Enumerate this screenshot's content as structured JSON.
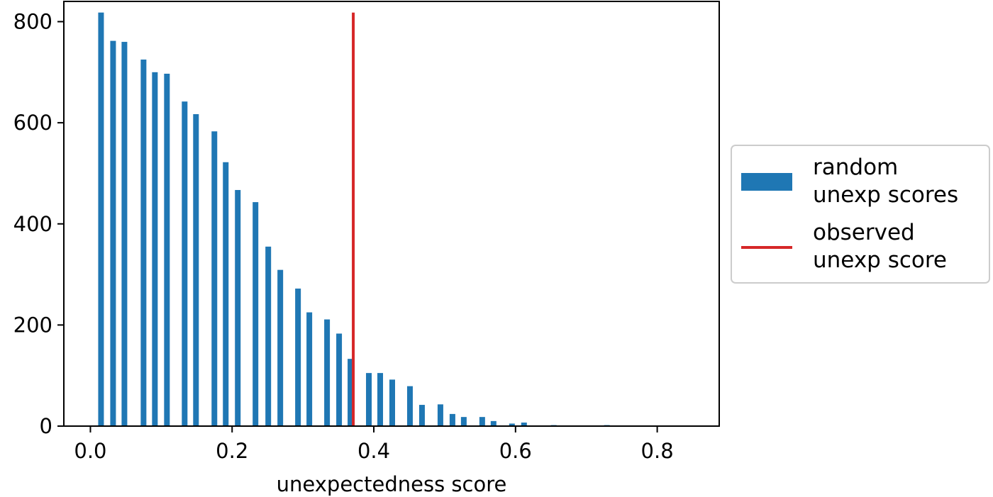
{
  "chart_data": {
    "type": "bar",
    "xlabel": "unexpectedness score",
    "ylabel": "",
    "xlim": [
      -0.0375,
      0.8875
    ],
    "ylim": [
      0,
      840
    ],
    "xticks": [
      0.0,
      0.2,
      0.4,
      0.6,
      0.8
    ],
    "xtick_labels": [
      "0.0",
      "0.2",
      "0.4",
      "0.6",
      "0.8"
    ],
    "yticks": [
      0,
      200,
      400,
      600,
      800
    ],
    "ytick_labels": [
      "0",
      "200",
      "400",
      "600",
      "800"
    ],
    "grid": false,
    "legend_position": "outside-right",
    "bar_color": "#1f77b4",
    "line_color": "#d62728",
    "series": [
      {
        "name": "random\nunexp scores",
        "kind": "histogram",
        "x": [
          0.015,
          0.032,
          0.048,
          0.075,
          0.091,
          0.108,
          0.133,
          0.149,
          0.175,
          0.191,
          0.208,
          0.233,
          0.251,
          0.268,
          0.293,
          0.309,
          0.334,
          0.351,
          0.367,
          0.393,
          0.409,
          0.426,
          0.451,
          0.468,
          0.494,
          0.511,
          0.527,
          0.553,
          0.569,
          0.595,
          0.612,
          0.629,
          0.654,
          0.671,
          0.688,
          0.729
        ],
        "values": [
          818,
          762,
          760,
          725,
          700,
          697,
          642,
          617,
          583,
          522,
          467,
          443,
          355,
          309,
          272,
          225,
          211,
          183,
          133,
          105,
          105,
          92,
          79,
          42,
          43,
          24,
          18,
          18,
          10,
          5,
          7,
          1,
          2,
          1,
          1,
          2
        ]
      },
      {
        "name": "observed\nunexp score",
        "kind": "vline",
        "x": 0.371,
        "y_range": [
          0,
          818
        ]
      }
    ]
  }
}
